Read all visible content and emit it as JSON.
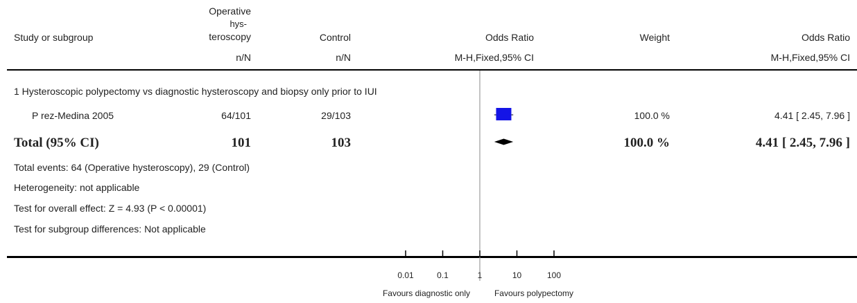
{
  "header": {
    "study_col": "Study or subgroup",
    "treatment_col_lines": [
      "Operative",
      "hys-",
      "teroscopy"
    ],
    "control_col": "Control",
    "plot_col": "Odds Ratio",
    "weight_col": "Weight",
    "result_col": "Odds Ratio",
    "treatment_sub": "n/N",
    "control_sub": "n/N",
    "plot_sub": "M-H,Fixed,95% CI",
    "result_sub": "M-H,Fixed,95% CI"
  },
  "subgroup_title": "1 Hysteroscopic polypectomy vs diagnostic hysteroscopy and biopsy only prior to IUI",
  "study": {
    "name": "P  rez-Medina 2005",
    "treatment": "64/101",
    "control": "29/103",
    "weight": "100.0 %",
    "result": "4.41 [ 2.45, 7.96 ]"
  },
  "total": {
    "label": "Total (95% CI)",
    "treatment": "101",
    "control": "103",
    "weight": "100.0 %",
    "result": "4.41 [ 2.45, 7.96 ]"
  },
  "footnotes": {
    "events": "Total events: 64 (Operative hysteroscopy), 29 (Control)",
    "heterogeneity": "Heterogeneity: not applicable",
    "overall_effect": "Test for overall effect: Z = 4.93 (P < 0.00001)",
    "subgroup_diff": "Test for subgroup differences: Not applicable"
  },
  "axis": {
    "favours_left": "Favours diagnostic only",
    "favours_right": "Favours polypectomy"
  },
  "chart_data": {
    "type": "forest",
    "scale": "log",
    "xlim": [
      0.01,
      100
    ],
    "ticks": [
      0.01,
      0.1,
      1,
      10,
      100
    ],
    "tick_labels": [
      "0.01",
      "0.1",
      "1",
      "10",
      "100"
    ],
    "null_value": 1,
    "studies": [
      {
        "name": "P  rez-Medina 2005",
        "or": 4.41,
        "ci": [
          2.45,
          7.96
        ],
        "weight": 100.0
      }
    ],
    "pooled": {
      "label": "Total (95% CI)",
      "or": 4.41,
      "ci": [
        2.45,
        7.96
      ]
    },
    "colors": {
      "study_box": "#1414e6",
      "pooled_diamond": "#000000"
    }
  }
}
